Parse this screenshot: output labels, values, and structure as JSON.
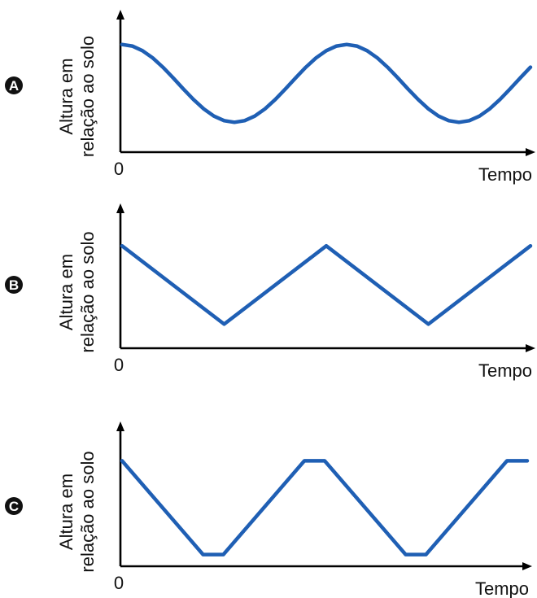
{
  "chart_data": [
    {
      "type": "line",
      "panel_label": "A",
      "ylabel_line1": "Altura em",
      "ylabel_line2": "relação ao solo",
      "xlabel": "Tempo",
      "origin_label": "0",
      "grid": false,
      "line_color": "#1f5fb4",
      "x": [
        0,
        0.5,
        1,
        1.5,
        2,
        2.5,
        3,
        3.5,
        4,
        4.5,
        5,
        5.5,
        6,
        6.5,
        7,
        7.5,
        8,
        8.5,
        9,
        9.5,
        10,
        10.5,
        11,
        11.5,
        12,
        12.5,
        13,
        13.5,
        14,
        14.5,
        15,
        15.5,
        16,
        16.5,
        17,
        17.5,
        18,
        18.5,
        19,
        19.5,
        20
      ],
      "y": [
        0.9,
        0.8869,
        0.8486,
        0.788,
        0.7101,
        0.6213,
        0.5287,
        0.4399,
        0.362,
        0.3014,
        0.2631,
        0.25,
        0.2631,
        0.3014,
        0.362,
        0.4399,
        0.5287,
        0.6213,
        0.7101,
        0.788,
        0.8486,
        0.8869,
        0.9,
        0.8869,
        0.8486,
        0.788,
        0.7101,
        0.6213,
        0.5287,
        0.4399,
        0.362,
        0.3014,
        0.2631,
        0.25,
        0.2631,
        0.3014,
        0.362,
        0.4399,
        0.5287,
        0.6213,
        0.7101
      ],
      "xlim": [
        0,
        20
      ],
      "ylim": [
        0,
        1
      ]
    },
    {
      "type": "line",
      "panel_label": "B",
      "ylabel_line1": "Altura em",
      "ylabel_line2": "relação ao solo",
      "xlabel": "Tempo",
      "origin_label": "0",
      "grid": false,
      "line_color": "#1f5fb4",
      "x": [
        0,
        5.0,
        10.0,
        15.0,
        20.0
      ],
      "y": [
        0.85,
        0.2,
        0.85,
        0.2,
        0.85
      ],
      "xlim": [
        0,
        20
      ],
      "ylim": [
        0,
        1
      ]
    },
    {
      "type": "line",
      "panel_label": "C",
      "ylabel_line1": "Altura em",
      "ylabel_line2": "relação ao solo",
      "xlabel": "Tempo",
      "origin_label": "0",
      "grid": false,
      "line_color": "#1f5fb4",
      "x": [
        0,
        4.0,
        5.0,
        9.0,
        10.0,
        14.0,
        15.0,
        19.0,
        20.0
      ],
      "y": [
        0.9,
        0.1,
        0.1,
        0.9,
        0.9,
        0.1,
        0.1,
        0.9,
        0.9
      ],
      "xlim": [
        0,
        20
      ],
      "ylim": [
        0,
        1
      ]
    }
  ]
}
